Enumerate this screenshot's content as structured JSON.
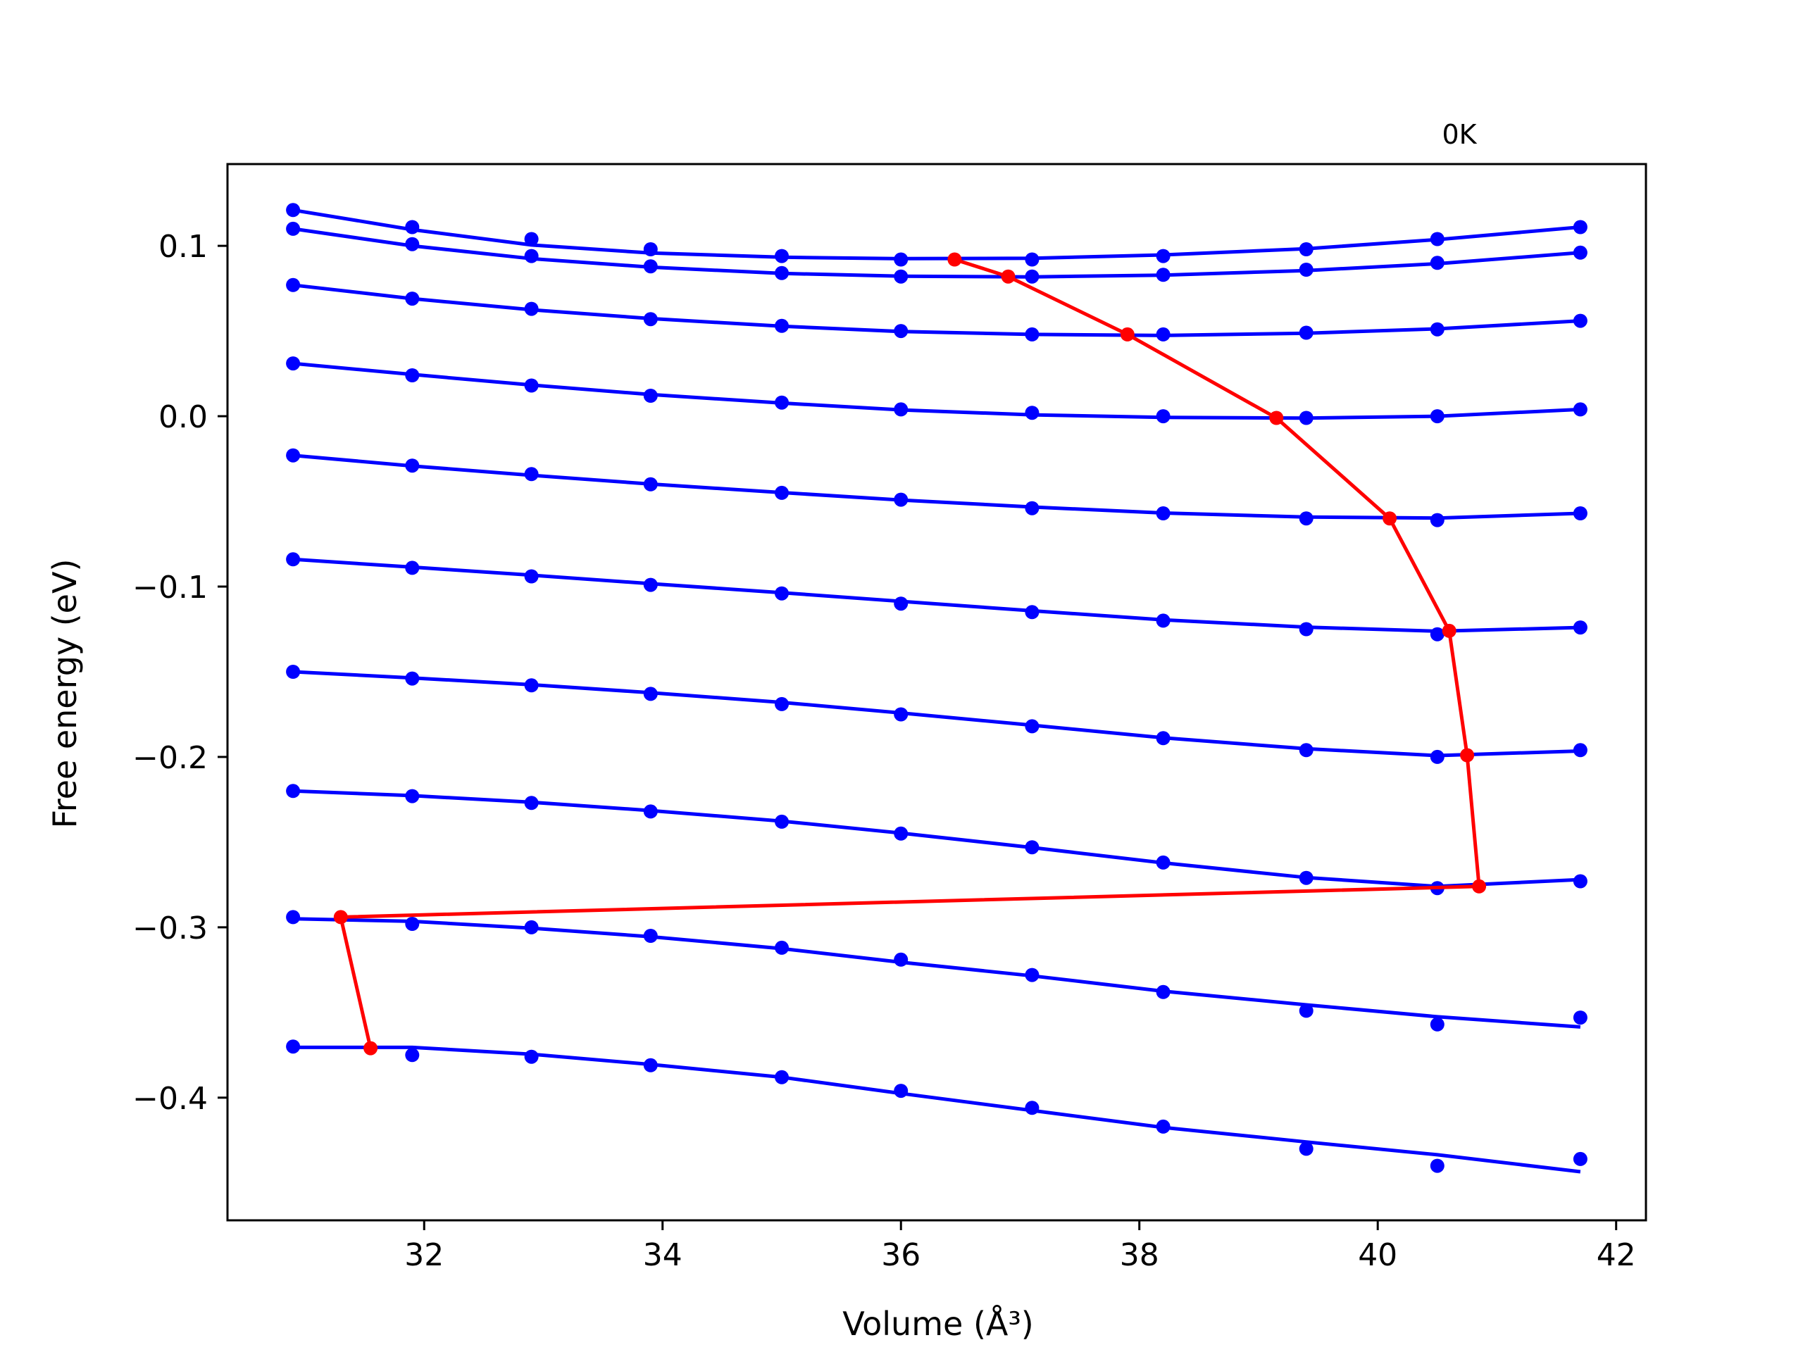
{
  "chart_data": {
    "type": "line",
    "annotation": "0K",
    "xlabel": "Volume (Å³)",
    "ylabel": "Free energy (eV)",
    "xlim": [
      30.35,
      42.25
    ],
    "ylim": [
      -0.472,
      0.148
    ],
    "xticks": [
      32,
      34,
      36,
      38,
      40,
      42
    ],
    "yticks": [
      0.1,
      0.0,
      -0.1,
      -0.2,
      -0.3,
      -0.4
    ],
    "ytick_labels": [
      "0.1",
      "0.0",
      "−0.1",
      "−0.2",
      "−0.3",
      "−0.4"
    ],
    "grid": false,
    "legend": "none",
    "colors": {
      "isotherm": "#0000ff",
      "minimum_path": "#ff0000",
      "frame": "#000000"
    },
    "volumes": [
      30.9,
      31.9,
      32.9,
      33.9,
      35.0,
      36.0,
      37.1,
      38.2,
      39.4,
      40.5,
      41.7
    ],
    "isotherms": [
      {
        "points": [
          0.121,
          0.111,
          0.104,
          0.098,
          0.094,
          0.092,
          0.092,
          0.094,
          0.098,
          0.104,
          0.111
        ],
        "fit": [
          0.121,
          0.1095,
          0.1005,
          0.0958,
          0.0933,
          0.0925,
          0.0927,
          0.0947,
          0.0983,
          0.1037,
          0.111
        ]
      },
      {
        "points": [
          0.11,
          0.101,
          0.094,
          0.088,
          0.084,
          0.082,
          0.082,
          0.083,
          0.086,
          0.09,
          0.096
        ],
        "fit": [
          0.11,
          0.1,
          0.0925,
          0.0875,
          0.0838,
          0.0822,
          0.0818,
          0.0828,
          0.0855,
          0.0895,
          0.096
        ]
      },
      {
        "points": [
          0.077,
          0.069,
          0.063,
          0.057,
          0.053,
          0.05,
          0.048,
          0.048,
          0.049,
          0.051,
          0.056
        ],
        "fit": [
          0.077,
          0.069,
          0.0625,
          0.0573,
          0.0528,
          0.0497,
          0.048,
          0.0474,
          0.0487,
          0.0513,
          0.056
        ]
      },
      {
        "points": [
          0.031,
          0.024,
          0.018,
          0.012,
          0.008,
          0.004,
          0.002,
          0.0,
          -0.001,
          0.0,
          0.004
        ],
        "fit": [
          0.031,
          0.0245,
          0.0183,
          0.0127,
          0.0077,
          0.0037,
          0.0008,
          -0.0007,
          -0.0011,
          0.0,
          0.004
        ]
      },
      {
        "points": [
          -0.023,
          -0.029,
          -0.034,
          -0.04,
          -0.045,
          -0.049,
          -0.054,
          -0.057,
          -0.06,
          -0.061,
          -0.057
        ],
        "fit": [
          -0.023,
          -0.0292,
          -0.0347,
          -0.0398,
          -0.0448,
          -0.0492,
          -0.0533,
          -0.0568,
          -0.0592,
          -0.0598,
          -0.057
        ]
      },
      {
        "points": [
          -0.084,
          -0.089,
          -0.094,
          -0.099,
          -0.104,
          -0.11,
          -0.115,
          -0.12,
          -0.125,
          -0.128,
          -0.124
        ],
        "fit": [
          -0.084,
          -0.0886,
          -0.0933,
          -0.0983,
          -0.1036,
          -0.1087,
          -0.1142,
          -0.1195,
          -0.1238,
          -0.1262,
          -0.124
        ]
      },
      {
        "points": [
          -0.15,
          -0.154,
          -0.158,
          -0.163,
          -0.169,
          -0.175,
          -0.182,
          -0.189,
          -0.196,
          -0.2,
          -0.196
        ],
        "fit": [
          -0.15,
          -0.1536,
          -0.1576,
          -0.1623,
          -0.168,
          -0.1742,
          -0.1814,
          -0.1888,
          -0.1952,
          -0.1992,
          -0.1965
        ]
      },
      {
        "points": [
          -0.22,
          -0.223,
          -0.227,
          -0.232,
          -0.238,
          -0.245,
          -0.253,
          -0.262,
          -0.271,
          -0.277,
          -0.273
        ],
        "fit": [
          -0.22,
          -0.2227,
          -0.2266,
          -0.2315,
          -0.2377,
          -0.2447,
          -0.2532,
          -0.2622,
          -0.2708,
          -0.276,
          -0.272
        ]
      },
      {
        "points": [
          -0.294,
          -0.298,
          -0.3,
          -0.305,
          -0.312,
          -0.319,
          -0.328,
          -0.338,
          -0.349,
          -0.357,
          -0.353
        ],
        "fit": [
          -0.295,
          -0.2965,
          -0.3005,
          -0.3055,
          -0.3125,
          -0.3205,
          -0.3285,
          -0.3375,
          -0.3455,
          -0.3525,
          -0.3585
        ]
      },
      {
        "points": [
          -0.37,
          -0.375,
          -0.376,
          -0.381,
          -0.388,
          -0.396,
          -0.406,
          -0.417,
          -0.43,
          -0.44,
          -0.436
        ],
        "fit": [
          -0.3705,
          -0.3705,
          -0.3745,
          -0.3805,
          -0.388,
          -0.3975,
          -0.4075,
          -0.4175,
          -0.426,
          -0.4335,
          -0.4435
        ]
      }
    ],
    "minimum_path": {
      "x": [
        36.45,
        36.9,
        37.9,
        39.15,
        40.1,
        40.6,
        40.75,
        40.85,
        31.3,
        31.55
      ],
      "y": [
        0.092,
        0.082,
        0.048,
        -0.001,
        -0.06,
        -0.126,
        -0.199,
        -0.276,
        -0.294,
        -0.371
      ]
    }
  }
}
